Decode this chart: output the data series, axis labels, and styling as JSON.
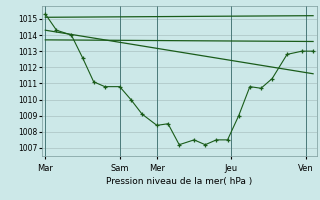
{
  "background_color": "#cce8e8",
  "grid_color": "#b0c8c8",
  "line_color": "#1a5c1a",
  "title": "Pression niveau de la mer( hPa )",
  "xtick_labels": [
    "Mar",
    "",
    "Sam",
    "Mer",
    "",
    "Jeu",
    "",
    "Ven"
  ],
  "xtick_positions": [
    0,
    1,
    2,
    3,
    4,
    5,
    6,
    7
  ],
  "vline_positions": [
    0,
    2,
    3,
    5,
    7
  ],
  "vline_labels": [
    "Mar",
    "Sam",
    "Mer",
    "Jeu",
    "Ven"
  ],
  "ylim": [
    1006.5,
    1015.8
  ],
  "yticks": [
    1007,
    1008,
    1009,
    1010,
    1011,
    1012,
    1013,
    1014,
    1015
  ],
  "xlim": [
    -0.1,
    7.3
  ],
  "series1_x": [
    0.0,
    0.3,
    0.7,
    1.0,
    1.3,
    1.6,
    2.0,
    2.3,
    2.6,
    3.0,
    3.3,
    3.6,
    4.0,
    4.3,
    4.6,
    4.9,
    5.2,
    5.5,
    5.8,
    6.1,
    6.5,
    6.9,
    7.2
  ],
  "series1_y": [
    1015.3,
    1014.3,
    1014.0,
    1012.6,
    1011.1,
    1010.8,
    1010.8,
    1010.0,
    1009.1,
    1008.4,
    1008.5,
    1007.2,
    1007.5,
    1007.2,
    1007.5,
    1007.5,
    1009.0,
    1010.8,
    1010.7,
    1011.3,
    1012.8,
    1013.0,
    1013.0
  ],
  "series2_x": [
    0.0,
    7.2
  ],
  "series2_y": [
    1015.1,
    1015.2
  ],
  "series3_x": [
    0.0,
    7.2
  ],
  "series3_y": [
    1013.7,
    1013.6
  ],
  "series4_x": [
    0.0,
    7.2
  ],
  "series4_y": [
    1014.3,
    1011.6
  ]
}
